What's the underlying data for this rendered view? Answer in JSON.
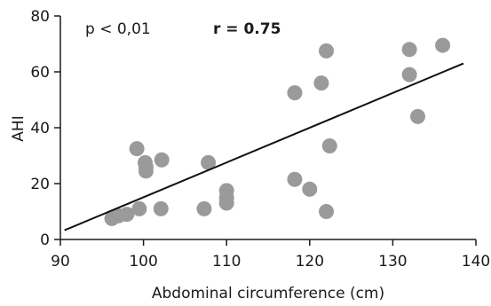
{
  "chart_data": {
    "type": "scatter",
    "xlabel": "Abdominal circumference (cm)",
    "ylabel": "AHI",
    "xlim": [
      90,
      140
    ],
    "ylim": [
      0,
      80
    ],
    "xticks": [
      90,
      100,
      110,
      120,
      130,
      140
    ],
    "yticks": [
      0,
      20,
      40,
      60,
      80
    ],
    "grid": false,
    "annotations": {
      "p": "p < 0,01",
      "r": "r = 0.75"
    },
    "regression_line": {
      "x": [
        90.5,
        138.5
      ],
      "y": [
        3.3,
        63
      ]
    },
    "colors": {
      "points": "#9a9a9a",
      "line": "#111111",
      "axis": "#1a1a1a"
    },
    "points": [
      {
        "x": 96.2,
        "y": 7.5
      },
      {
        "x": 97.0,
        "y": 8.5
      },
      {
        "x": 98.0,
        "y": 9.0
      },
      {
        "x": 99.5,
        "y": 11.0
      },
      {
        "x": 99.2,
        "y": 32.5
      },
      {
        "x": 100.2,
        "y": 27.5
      },
      {
        "x": 100.3,
        "y": 26.0
      },
      {
        "x": 100.3,
        "y": 24.5
      },
      {
        "x": 102.2,
        "y": 28.5
      },
      {
        "x": 102.1,
        "y": 11.0
      },
      {
        "x": 107.3,
        "y": 11.0
      },
      {
        "x": 107.8,
        "y": 27.5
      },
      {
        "x": 110.0,
        "y": 17.5
      },
      {
        "x": 110.0,
        "y": 15.0
      },
      {
        "x": 110.0,
        "y": 13.0
      },
      {
        "x": 118.2,
        "y": 52.5
      },
      {
        "x": 118.2,
        "y": 21.5
      },
      {
        "x": 120.0,
        "y": 18.0
      },
      {
        "x": 121.4,
        "y": 56.0
      },
      {
        "x": 122.0,
        "y": 67.5
      },
      {
        "x": 122.0,
        "y": 10.0
      },
      {
        "x": 122.4,
        "y": 33.5
      },
      {
        "x": 132.0,
        "y": 68.0
      },
      {
        "x": 132.0,
        "y": 59.0
      },
      {
        "x": 133.0,
        "y": 44.0
      },
      {
        "x": 136.0,
        "y": 69.5
      }
    ]
  }
}
